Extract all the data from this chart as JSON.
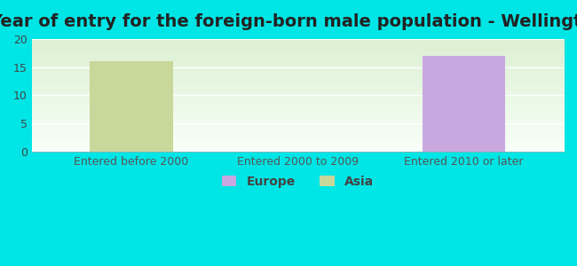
{
  "title": "Year of entry for the foreign-born male population - Wellington",
  "categories": [
    "Entered before 2000",
    "Entered 2000 to 2009",
    "Entered 2010 or later"
  ],
  "europe_values": [
    0,
    0,
    17
  ],
  "asia_values": [
    16,
    0,
    0
  ],
  "europe_color": "#c9a8e0",
  "asia_color": "#c8d89a",
  "background_color": "#00e5e5",
  "ylim": [
    0,
    20
  ],
  "yticks": [
    0,
    5,
    10,
    15,
    20
  ],
  "title_fontsize": 14,
  "tick_fontsize": 9,
  "legend_fontsize": 10
}
